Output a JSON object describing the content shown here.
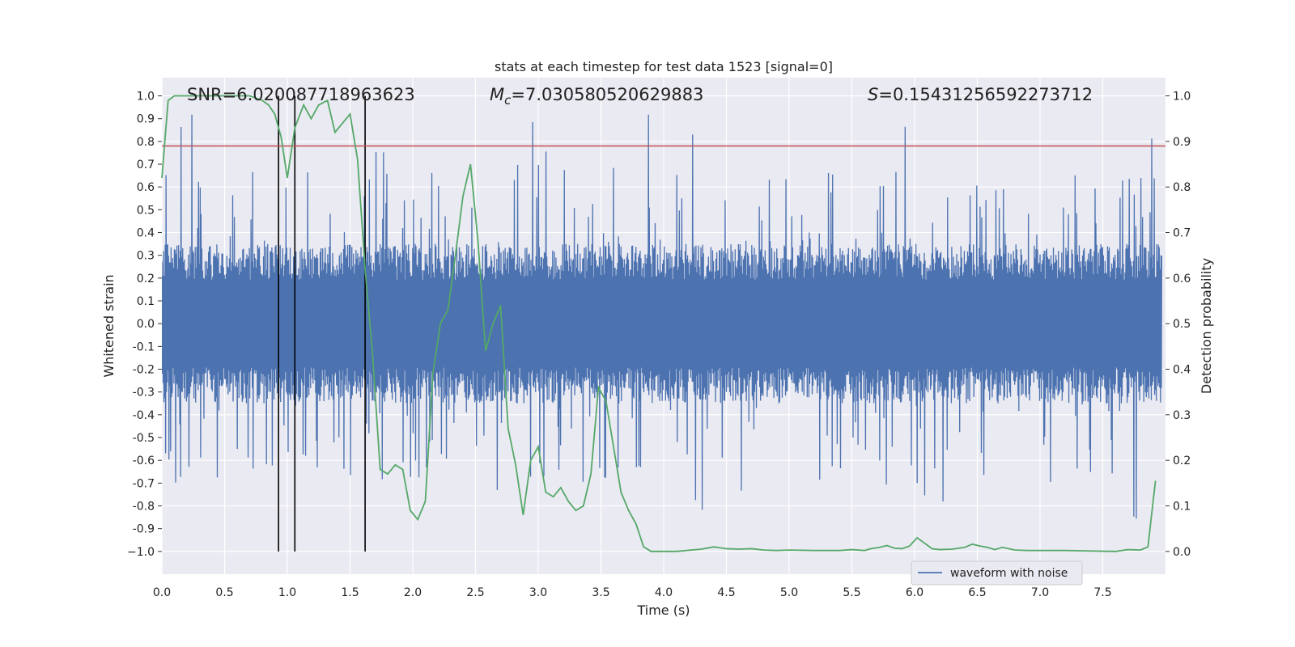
{
  "chart_data": {
    "type": "line",
    "title": "stats at each timestep for test data 1523 [signal=0]",
    "xlabel": "Time (s)",
    "ylabel_left": "Whitened strain",
    "ylabel_right": "Detection probability",
    "xlim": [
      0.0,
      8.0
    ],
    "ylim_left": [
      -1.1,
      1.08
    ],
    "ylim_right": [
      -0.05,
      1.04
    ],
    "grid": true,
    "x_ticks": [
      "0.0",
      "0.5",
      "1.0",
      "1.5",
      "2.0",
      "2.5",
      "3.0",
      "3.5",
      "4.0",
      "4.5",
      "5.0",
      "5.5",
      "6.0",
      "6.5",
      "7.0",
      "7.5"
    ],
    "y_ticks_left": [
      "1.0",
      "0.9",
      "0.8",
      "0.7",
      "0.6",
      "0.5",
      "0.4",
      "0.3",
      "0.2",
      "0.1",
      "0.0",
      "-0.1",
      "-0.2",
      "-0.3",
      "-0.4",
      "-0.5",
      "-0.6",
      "-0.7",
      "-0.8",
      "-0.9",
      "−1.0"
    ],
    "y_ticks_right": [
      "1.0",
      "0.9",
      "0.8",
      "0.7",
      "0.6",
      "0.5",
      "0.4",
      "0.3",
      "0.2",
      "0.1",
      "0.0"
    ],
    "annotations": {
      "snr": "SNR=6.020087718963623",
      "mc_symbol": "M",
      "mc_sub": "c",
      "mc_value": "=7.030580520629883",
      "s_symbol": "S",
      "s_value": "=0.15431256592273712"
    },
    "threshold": {
      "value": 0.78,
      "axis": "left",
      "color": "#c44e52"
    },
    "vertical_lines": [
      0.93,
      1.06,
      1.62
    ],
    "legend": {
      "label": "waveform with noise",
      "location": "lower-right"
    },
    "series": [
      {
        "name": "waveform with noise",
        "axis": "left",
        "color": "#4c72b0",
        "kind": "noise",
        "envelope": {
          "typical": 0.35,
          "peak_max": 0.92,
          "trough_min": -0.99
        }
      },
      {
        "name": "detection probability",
        "axis": "right",
        "color": "#55a868",
        "x": [
          0.0,
          0.05,
          0.1,
          0.2,
          0.3,
          0.4,
          0.5,
          0.6,
          0.7,
          0.75,
          0.8,
          0.85,
          0.9,
          0.95,
          1.0,
          1.06,
          1.13,
          1.19,
          1.25,
          1.32,
          1.38,
          1.44,
          1.5,
          1.56,
          1.62,
          1.68,
          1.74,
          1.8,
          1.86,
          1.92,
          1.98,
          2.04,
          2.1,
          2.16,
          2.22,
          2.28,
          2.34,
          2.4,
          2.46,
          2.52,
          2.58,
          2.64,
          2.7,
          2.76,
          2.82,
          2.88,
          2.94,
          3.0,
          3.06,
          3.12,
          3.18,
          3.24,
          3.3,
          3.36,
          3.42,
          3.48,
          3.54,
          3.6,
          3.66,
          3.72,
          3.78,
          3.84,
          3.9,
          3.96,
          4.1,
          4.3,
          4.4,
          4.5,
          4.6,
          4.7,
          4.8,
          4.9,
          5.0,
          5.2,
          5.4,
          5.5,
          5.6,
          5.65,
          5.72,
          5.78,
          5.84,
          5.9,
          5.96,
          6.02,
          6.08,
          6.14,
          6.2,
          6.3,
          6.4,
          6.46,
          6.52,
          6.58,
          6.64,
          6.7,
          6.8,
          6.9,
          7.0,
          7.2,
          7.4,
          7.6,
          7.7,
          7.8,
          7.86,
          7.92
        ],
        "values": [
          0.82,
          0.99,
          1.0,
          1.0,
          1.0,
          1.0,
          1.0,
          1.0,
          1.0,
          0.995,
          0.99,
          0.98,
          0.96,
          0.91,
          0.82,
          0.93,
          0.98,
          0.95,
          0.98,
          0.99,
          0.92,
          0.94,
          0.96,
          0.86,
          0.62,
          0.43,
          0.18,
          0.17,
          0.19,
          0.18,
          0.09,
          0.07,
          0.11,
          0.39,
          0.5,
          0.53,
          0.65,
          0.78,
          0.85,
          0.68,
          0.44,
          0.5,
          0.54,
          0.27,
          0.19,
          0.08,
          0.2,
          0.23,
          0.13,
          0.12,
          0.14,
          0.11,
          0.09,
          0.1,
          0.17,
          0.36,
          0.33,
          0.23,
          0.13,
          0.09,
          0.06,
          0.01,
          0.0,
          0.0,
          0.0,
          0.005,
          0.01,
          0.006,
          0.005,
          0.006,
          0.003,
          0.002,
          0.003,
          0.002,
          0.002,
          0.004,
          0.002,
          0.006,
          0.009,
          0.013,
          0.007,
          0.006,
          0.012,
          0.03,
          0.018,
          0.006,
          0.004,
          0.005,
          0.009,
          0.016,
          0.012,
          0.009,
          0.004,
          0.009,
          0.003,
          0.002,
          0.002,
          0.002,
          0.001,
          0.0,
          0.004,
          0.003,
          0.01,
          0.155
        ]
      }
    ]
  }
}
